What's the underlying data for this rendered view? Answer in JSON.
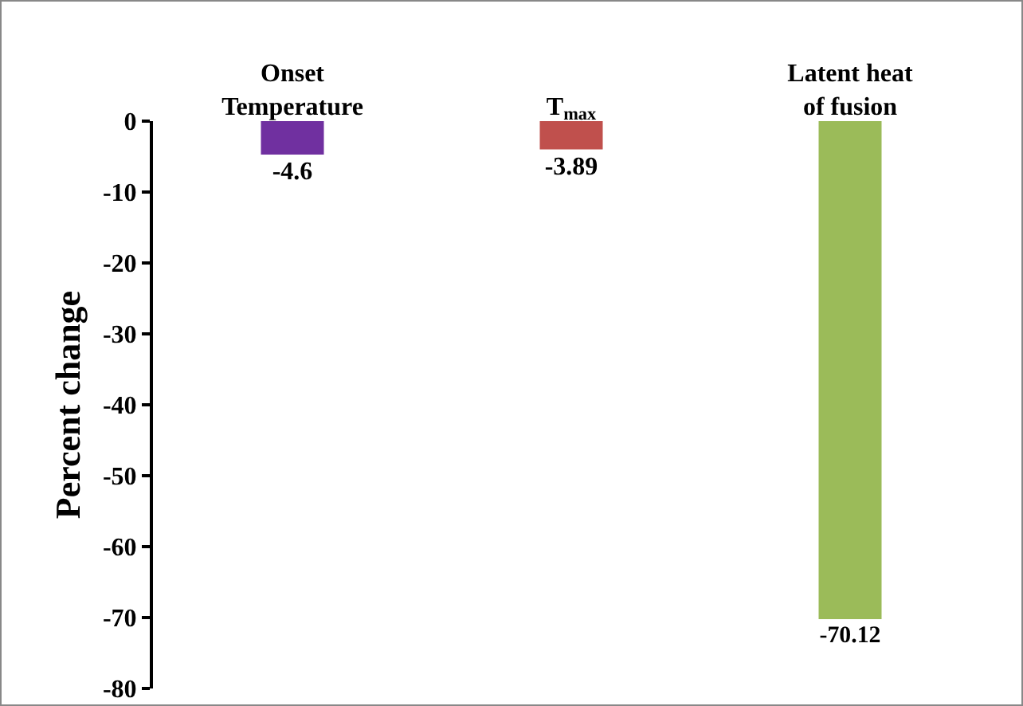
{
  "chart_data": {
    "type": "bar",
    "ylabel": "Percent change",
    "categories": [
      "Onset Temperature",
      "T$_{max}$",
      "Latent heat of fusion"
    ],
    "values": [
      -4.6,
      -3.89,
      -70.12
    ],
    "colors": [
      "#7030a0",
      "#c0504d",
      "#9bbb59"
    ],
    "ylim": [
      -80,
      0
    ],
    "yticks": [
      0,
      -10,
      -20,
      -30,
      -40,
      -50,
      -60,
      -70,
      -80
    ],
    "data_labels": true
  }
}
